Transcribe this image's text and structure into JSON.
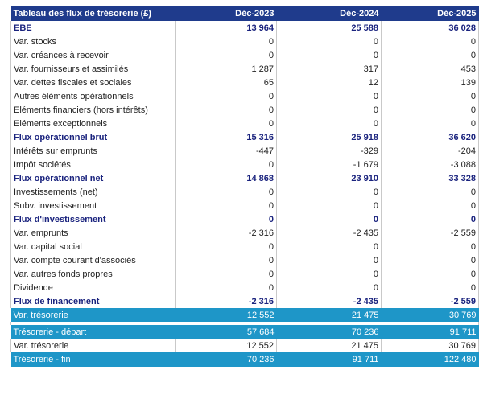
{
  "header": {
    "title": "Tableau des flux de trésorerie (£)",
    "years": [
      "Déc-2023",
      "Déc-2024",
      "Déc-2025"
    ]
  },
  "rows": [
    {
      "label": "EBE",
      "values": [
        "13 964",
        "25 588",
        "36 028"
      ]
    },
    {
      "label": "Var. stocks",
      "values": [
        "0",
        "0",
        "0"
      ]
    },
    {
      "label": "Var. créances à recevoir",
      "values": [
        "0",
        "0",
        "0"
      ]
    },
    {
      "label": "Var. fournisseurs et assimilés",
      "values": [
        "1 287",
        "317",
        "453"
      ]
    },
    {
      "label": "Var. dettes fiscales et sociales",
      "values": [
        "65",
        "12",
        "139"
      ]
    },
    {
      "label": "Autres éléments opérationnels",
      "values": [
        "0",
        "0",
        "0"
      ]
    },
    {
      "label": "Eléments financiers (hors intérêts)",
      "values": [
        "0",
        "0",
        "0"
      ]
    },
    {
      "label": "Eléments exceptionnels",
      "values": [
        "0",
        "0",
        "0"
      ]
    },
    {
      "label": "Flux opérationnel brut",
      "values": [
        "15 316",
        "25 918",
        "36 620"
      ]
    },
    {
      "label": "Intérêts sur emprunts",
      "values": [
        "-447",
        "-329",
        "-204"
      ]
    },
    {
      "label": "Impôt sociétés",
      "values": [
        "0",
        "-1 679",
        "-3 088"
      ]
    },
    {
      "label": "Flux opérationnel net",
      "values": [
        "14 868",
        "23 910",
        "33 328"
      ]
    },
    {
      "label": "Investissements (net)",
      "values": [
        "0",
        "0",
        "0"
      ]
    },
    {
      "label": "Subv. investissement",
      "values": [
        "0",
        "0",
        "0"
      ]
    },
    {
      "label": "Flux d'investissement",
      "values": [
        "0",
        "0",
        "0"
      ]
    },
    {
      "label": "Var. emprunts",
      "values": [
        "-2 316",
        "-2 435",
        "-2 559"
      ]
    },
    {
      "label": "Var. capital social",
      "values": [
        "0",
        "0",
        "0"
      ]
    },
    {
      "label": "Var. compte courant d'associés",
      "values": [
        "0",
        "0",
        "0"
      ]
    },
    {
      "label": "Var. autres fonds propres",
      "values": [
        "0",
        "0",
        "0"
      ]
    },
    {
      "label": "Dividende",
      "values": [
        "0",
        "0",
        "0"
      ]
    },
    {
      "label": "Flux de financement",
      "values": [
        "-2 316",
        "-2 435",
        "-2 559"
      ]
    },
    {
      "label": "Var. trésorerie",
      "values": [
        "12 552",
        "21 475",
        "30 769"
      ]
    },
    {
      "label": "Trésorerie - départ",
      "values": [
        "57 684",
        "70 236",
        "91 711"
      ]
    },
    {
      "label": "Var. trésorerie",
      "values": [
        "12 552",
        "21 475",
        "30 769"
      ]
    },
    {
      "label": "Trésorerie - fin",
      "values": [
        "70 236",
        "91 711",
        "122 480"
      ]
    }
  ],
  "colors": {
    "header_bg": "#1f3b8c",
    "highlight_bg": "#1e96c8",
    "bold_text": "#1a237e"
  }
}
